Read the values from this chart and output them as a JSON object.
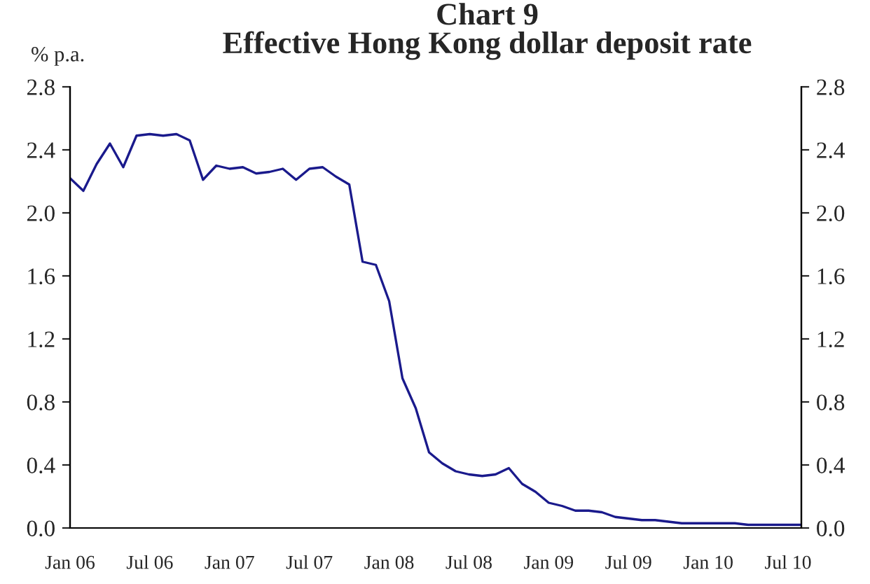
{
  "chart_data": {
    "type": "line",
    "title": "Chart 9\nEffective Hong Kong dollar deposit rate",
    "ylabel": "% p.a.",
    "categories": [
      "Jan 06",
      null,
      null,
      null,
      null,
      null,
      "Jul 06",
      null,
      null,
      null,
      null,
      null,
      "Jan 07",
      null,
      null,
      null,
      null,
      null,
      "Jul 07",
      null,
      null,
      null,
      null,
      null,
      "Jan 08",
      null,
      null,
      null,
      null,
      null,
      "Jul 08",
      null,
      null,
      null,
      null,
      null,
      "Jan 09",
      null,
      null,
      null,
      null,
      null,
      "Jul 09",
      null,
      null,
      null,
      null,
      null,
      "Jan 10",
      null,
      null,
      null,
      null,
      null,
      "Jul 10",
      null
    ],
    "series": [
      {
        "color": "#1a1a8c",
        "values": [
          2.22,
          2.14,
          2.31,
          2.44,
          2.29,
          2.49,
          2.5,
          2.49,
          2.5,
          2.46,
          2.21,
          2.3,
          2.28,
          2.29,
          2.25,
          2.26,
          2.28,
          2.21,
          2.28,
          2.29,
          2.23,
          2.18,
          1.69,
          1.67,
          1.44,
          0.95,
          0.76,
          0.48,
          0.41,
          0.36,
          0.34,
          0.33,
          0.34,
          0.38,
          0.28,
          0.23,
          0.16,
          0.14,
          0.11,
          0.11,
          0.1,
          0.07,
          0.06,
          0.05,
          0.05,
          0.04,
          0.03,
          0.03,
          0.03,
          0.03,
          0.03,
          0.02,
          0.02,
          0.02,
          0.02,
          0.02
        ]
      }
    ],
    "ylim": [
      0,
      2.8
    ],
    "yticks": [
      {
        "value": 0,
        "label": "0.0"
      },
      {
        "value": 0.4,
        "label": "0.4"
      },
      {
        "value": 0.8,
        "label": "0.8"
      },
      {
        "value": 1.2,
        "label": "1.2"
      },
      {
        "value": 1.6,
        "label": "1.6"
      },
      {
        "value": 2.0,
        "label": "2.0"
      },
      {
        "value": 2.4,
        "label": "2.4"
      },
      {
        "value": 2.8,
        "label": "2.8"
      }
    ],
    "y2lim": [
      0,
      2.8
    ],
    "y2ticks": [
      {
        "value": 0,
        "label": "0.0"
      },
      {
        "value": 0.4,
        "label": "0.4"
      },
      {
        "value": 0.8,
        "label": "0.8"
      },
      {
        "value": 1.2,
        "label": "1.2"
      },
      {
        "value": 1.6,
        "label": "1.6"
      },
      {
        "value": 2.0,
        "label": "2.0"
      },
      {
        "value": 2.4,
        "label": "2.4"
      },
      {
        "value": 2.8,
        "label": "2.8"
      }
    ],
    "grid": false,
    "legend": false,
    "marker": "none",
    "line_style": "solid"
  }
}
